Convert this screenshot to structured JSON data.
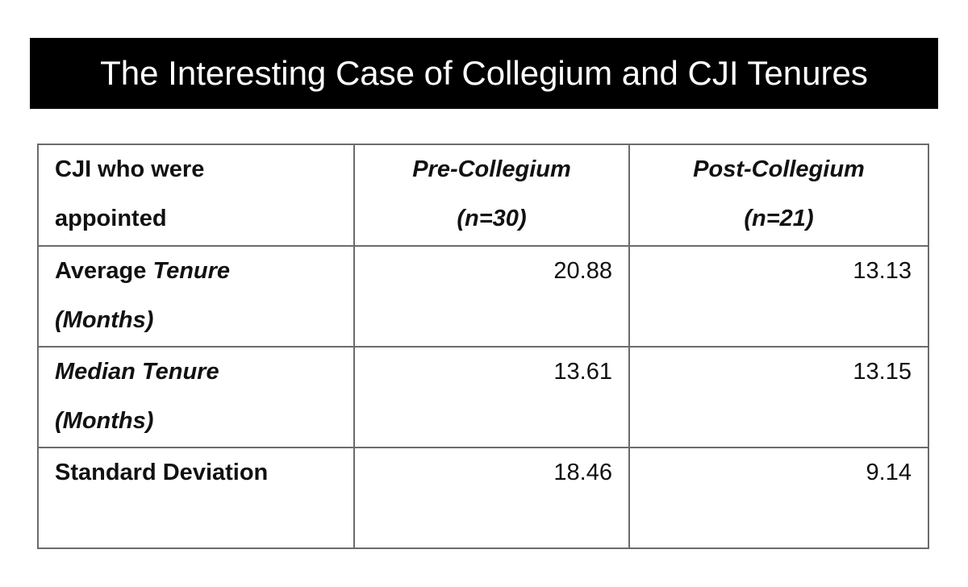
{
  "header": {
    "title": "The Interesting Case of Collegium and CJI Tenures"
  },
  "table": {
    "columns": [
      "CJI who were appointed",
      "Pre-Collegium (n=30)",
      "Post-Collegium (n=21)"
    ],
    "rows": [
      {
        "label": {
          "plain": "Average",
          "italic": "Tenure (Months)"
        },
        "values": [
          20.88,
          13.13
        ]
      },
      {
        "label": {
          "italic": "Median Tenure (Months)"
        },
        "values": [
          13.61,
          13.15
        ]
      },
      {
        "label": {
          "plain": "Standard Deviation"
        },
        "values": [
          18.46,
          9.14
        ]
      }
    ]
  }
}
